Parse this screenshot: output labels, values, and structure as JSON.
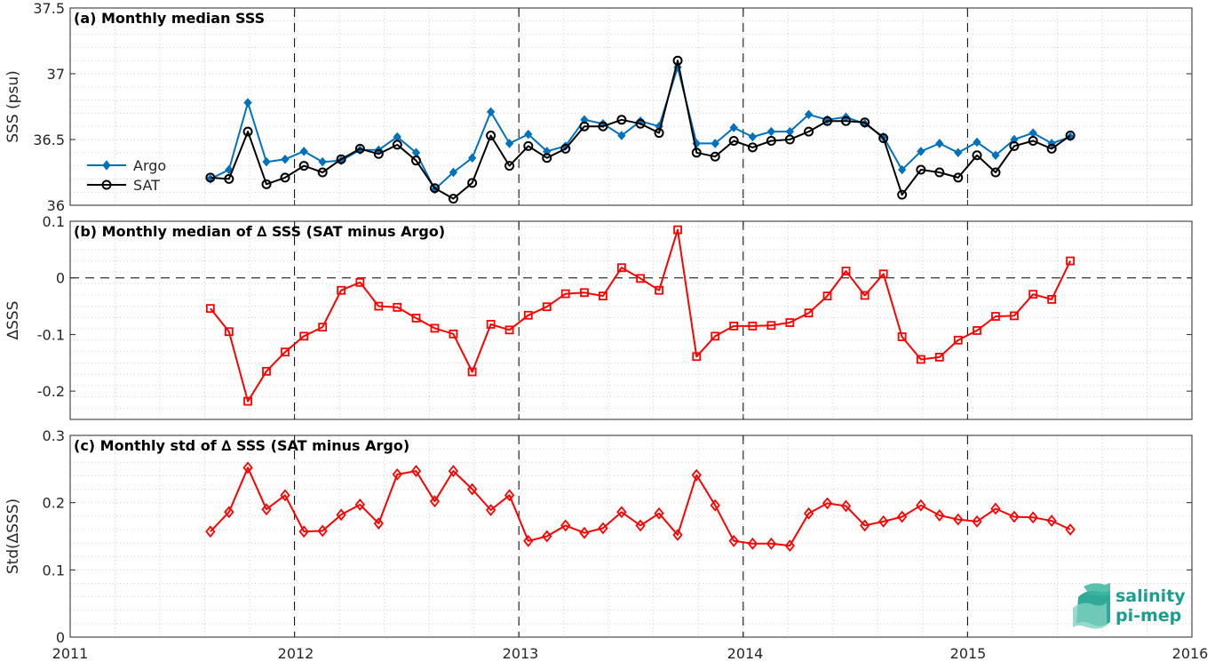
{
  "x_axis": {
    "min": 2011,
    "max": 2016,
    "ticks": [
      "2011",
      "2012",
      "2013",
      "2014",
      "2015",
      "2016"
    ],
    "year_lines": [
      2012,
      2013,
      2014,
      2015
    ]
  },
  "colors": {
    "argo": "#0072BD",
    "sat": "#000000",
    "delta": "#FF0000",
    "grid": "#cfcfcf",
    "axes": "#262626"
  },
  "logo": {
    "line1": "salinity",
    "line2": "pi-mep",
    "color": "#1a9e8f"
  },
  "chart_data": [
    {
      "type": "line",
      "title": "(a) Monthly median SSS",
      "ylabel": "SSS (psu)",
      "ylim": [
        36,
        37.5
      ],
      "yticks": [
        "36",
        "36.5",
        "37",
        "37.5"
      ],
      "ytick_values": [
        36,
        36.5,
        37,
        37.5
      ],
      "grid": true,
      "legend_position": "middle-left",
      "x": [
        2011.625,
        2011.708,
        2011.792,
        2011.875,
        2011.958,
        2012.042,
        2012.125,
        2012.208,
        2012.292,
        2012.375,
        2012.458,
        2012.542,
        2012.625,
        2012.708,
        2012.792,
        2012.875,
        2012.958,
        2013.042,
        2013.125,
        2013.208,
        2013.292,
        2013.375,
        2013.458,
        2013.542,
        2013.625,
        2013.708,
        2013.792,
        2013.875,
        2013.958,
        2014.042,
        2014.125,
        2014.208,
        2014.292,
        2014.375,
        2014.458,
        2014.542,
        2014.625,
        2014.708,
        2014.792,
        2014.875,
        2014.958,
        2015.042,
        2015.125,
        2015.208,
        2015.292,
        2015.375,
        2015.458
      ],
      "series": [
        {
          "name": "Argo",
          "marker": "diamond-filled",
          "values": [
            36.2,
            36.27,
            36.78,
            36.33,
            36.35,
            36.41,
            36.33,
            36.34,
            36.42,
            36.42,
            36.52,
            36.4,
            36.12,
            36.25,
            36.36,
            36.71,
            36.47,
            36.54,
            36.41,
            36.45,
            36.65,
            36.62,
            36.53,
            36.64,
            36.6,
            37.05,
            36.47,
            36.47,
            36.59,
            36.52,
            36.56,
            36.56,
            36.69,
            36.65,
            36.67,
            36.62,
            36.52,
            36.27,
            36.41,
            36.47,
            36.4,
            36.48,
            36.38,
            36.5,
            36.55,
            36.47,
            36.52
          ]
        },
        {
          "name": "SAT",
          "marker": "circle-open",
          "values": [
            36.21,
            36.2,
            36.56,
            36.16,
            36.21,
            36.3,
            36.25,
            36.35,
            36.43,
            36.39,
            36.46,
            36.34,
            36.13,
            36.05,
            36.17,
            36.53,
            36.3,
            36.45,
            36.36,
            36.43,
            36.6,
            36.6,
            36.65,
            36.62,
            36.55,
            37.1,
            36.4,
            36.37,
            36.49,
            36.44,
            36.49,
            36.5,
            36.56,
            36.64,
            36.64,
            36.63,
            36.51,
            36.08,
            36.27,
            36.25,
            36.21,
            36.38,
            36.25,
            36.45,
            36.49,
            36.43,
            36.53
          ]
        }
      ]
    },
    {
      "type": "line",
      "title": "(b) Monthly median of ∆ SSS (SAT minus Argo)",
      "ylabel": "∆SSS",
      "ylim": [
        -0.25,
        0.1
      ],
      "yticks": [
        "-0.2",
        "-0.1",
        "0",
        "0.1"
      ],
      "ytick_values": [
        -0.2,
        -0.1,
        0,
        0.1
      ],
      "grid": true,
      "reference_line": 0,
      "x": [
        2011.625,
        2011.708,
        2011.792,
        2011.875,
        2011.958,
        2012.042,
        2012.125,
        2012.208,
        2012.292,
        2012.375,
        2012.458,
        2012.542,
        2012.625,
        2012.708,
        2012.792,
        2012.875,
        2012.958,
        2013.042,
        2013.125,
        2013.208,
        2013.292,
        2013.375,
        2013.458,
        2013.542,
        2013.625,
        2013.708,
        2013.792,
        2013.875,
        2013.958,
        2014.042,
        2014.125,
        2014.208,
        2014.292,
        2014.375,
        2014.458,
        2014.542,
        2014.625,
        2014.708,
        2014.792,
        2014.875,
        2014.958,
        2015.042,
        2015.125,
        2015.208,
        2015.292,
        2015.375,
        2015.458
      ],
      "series": [
        {
          "marker": "square-open",
          "values": [
            -0.054,
            -0.095,
            -0.218,
            -0.165,
            -0.131,
            -0.103,
            -0.087,
            -0.022,
            -0.008,
            -0.05,
            -0.052,
            -0.071,
            -0.089,
            -0.099,
            -0.166,
            -0.082,
            -0.092,
            -0.066,
            -0.051,
            -0.028,
            -0.026,
            -0.032,
            0.018,
            -0.001,
            -0.022,
            0.085,
            -0.139,
            -0.103,
            -0.085,
            -0.085,
            -0.084,
            -0.079,
            -0.062,
            -0.032,
            0.012,
            -0.031,
            0.007,
            -0.104,
            -0.144,
            -0.14,
            -0.11,
            -0.093,
            -0.068,
            -0.067,
            -0.029,
            -0.038,
            0.03
          ]
        }
      ]
    },
    {
      "type": "line",
      "title": "(c) Monthly std of ∆ SSS (SAT minus Argo)",
      "ylabel": "Std(∆SSS)",
      "ylim": [
        0,
        0.3
      ],
      "yticks": [
        "0",
        "0.1",
        "0.2",
        "0.3"
      ],
      "ytick_values": [
        0,
        0.1,
        0.2,
        0.3
      ],
      "grid": true,
      "x": [
        2011.625,
        2011.708,
        2011.792,
        2011.875,
        2011.958,
        2012.042,
        2012.125,
        2012.208,
        2012.292,
        2012.375,
        2012.458,
        2012.542,
        2012.625,
        2012.708,
        2012.792,
        2012.875,
        2012.958,
        2013.042,
        2013.125,
        2013.208,
        2013.292,
        2013.375,
        2013.458,
        2013.542,
        2013.625,
        2013.708,
        2013.792,
        2013.875,
        2013.958,
        2014.042,
        2014.125,
        2014.208,
        2014.292,
        2014.375,
        2014.458,
        2014.542,
        2014.625,
        2014.708,
        2014.792,
        2014.875,
        2014.958,
        2015.042,
        2015.125,
        2015.208,
        2015.292,
        2015.375,
        2015.458
      ],
      "series": [
        {
          "marker": "diamond-open",
          "values": [
            0.157,
            0.186,
            0.252,
            0.19,
            0.211,
            0.157,
            0.158,
            0.182,
            0.197,
            0.169,
            0.242,
            0.247,
            0.202,
            0.247,
            0.22,
            0.189,
            0.211,
            0.143,
            0.15,
            0.166,
            0.155,
            0.162,
            0.186,
            0.166,
            0.184,
            0.152,
            0.241,
            0.196,
            0.143,
            0.139,
            0.139,
            0.136,
            0.184,
            0.199,
            0.195,
            0.166,
            0.172,
            0.179,
            0.196,
            0.181,
            0.175,
            0.172,
            0.191,
            0.179,
            0.178,
            0.173,
            0.16
          ]
        }
      ]
    }
  ]
}
